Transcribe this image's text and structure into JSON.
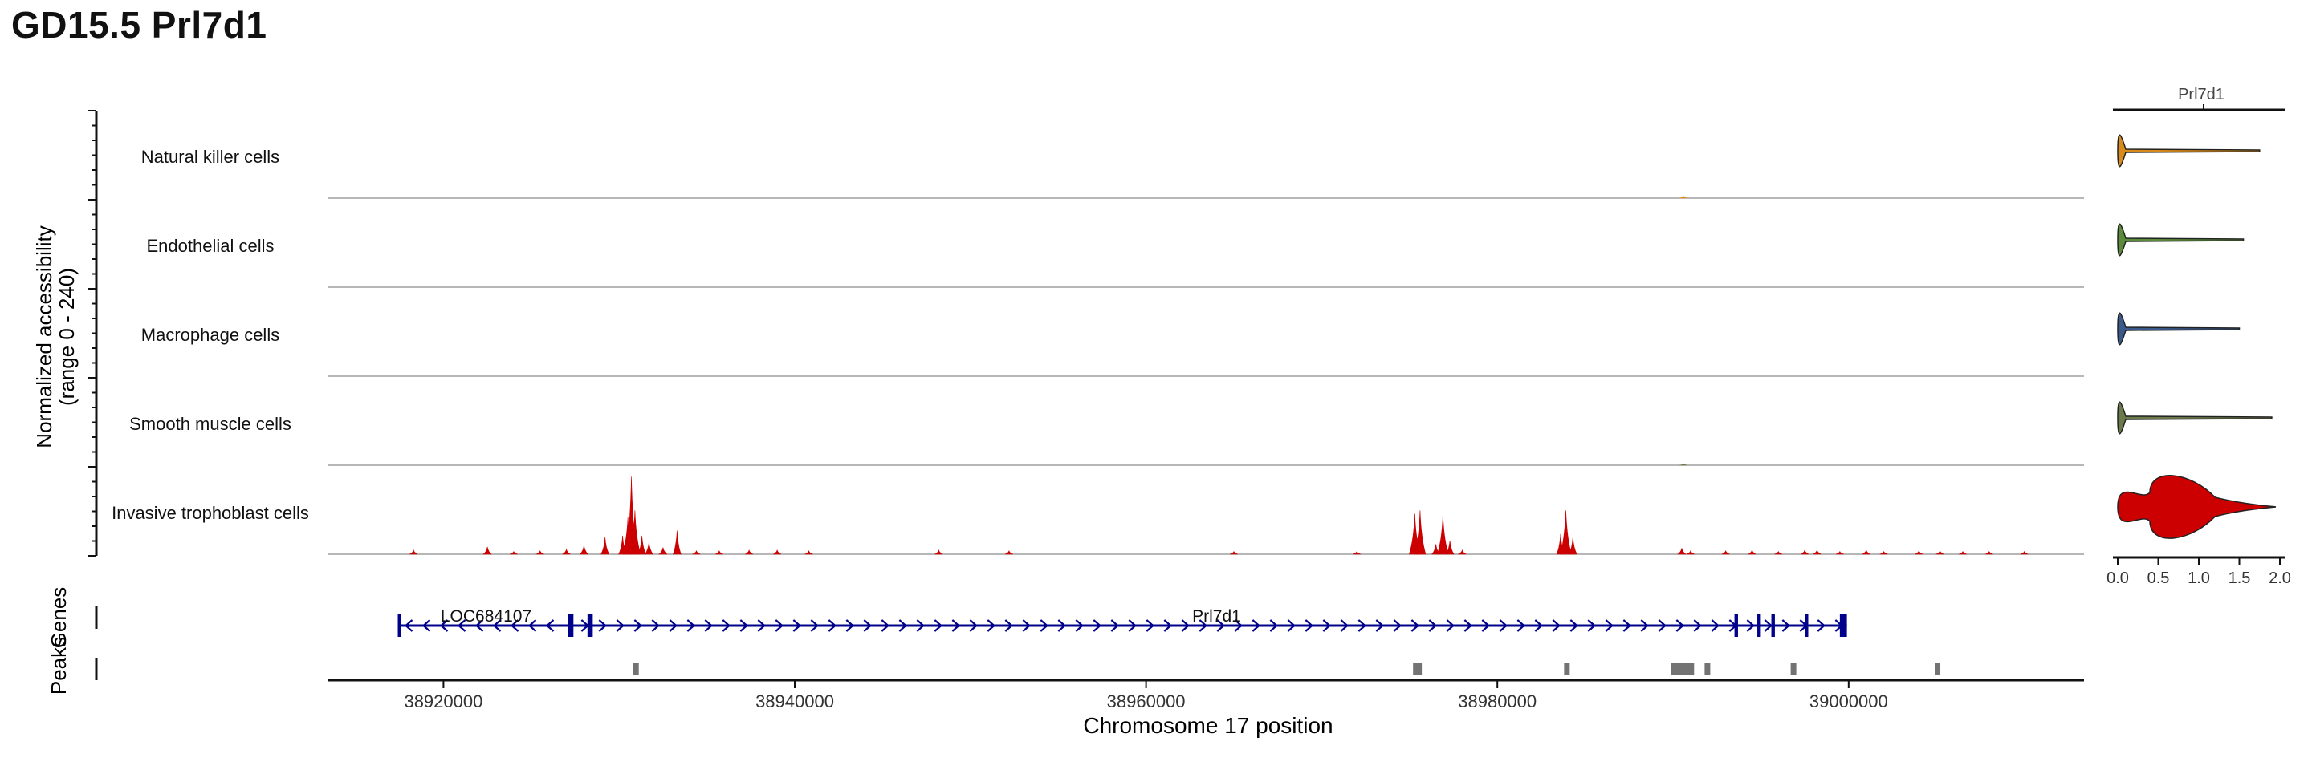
{
  "title": "GD15.5 Prl7d1",
  "colors": {
    "track_line": "#8c8c8c",
    "nk": "#d88a1a",
    "endothelial": "#5a8c3a",
    "macrophage": "#3a5a8c",
    "smooth_muscle": "#6b7a4a",
    "trophoblast": "#cc0000",
    "gene": "#00008b",
    "peak": "#737373"
  },
  "chart_data": {
    "type": "area",
    "ylabel_line1": "Normalized accessibility",
    "ylabel_line2": "(range 0 - 240)",
    "xlabel": "Chromosome 17 position",
    "xlim": [
      38913400,
      39013400
    ],
    "xticks": [
      38920000,
      38940000,
      38960000,
      38980000,
      39000000
    ],
    "xtick_labels": [
      "38920000",
      "38940000",
      "38960000",
      "38980000",
      "39000000"
    ],
    "ylim": [
      0,
      240
    ],
    "tracks": [
      {
        "name": "Natural killer cells",
        "color_key": "nk",
        "peaks": [
          [
            38990600,
            6
          ]
        ]
      },
      {
        "name": "Endothelial cells",
        "color_key": "endothelial",
        "peaks": []
      },
      {
        "name": "Macrophage cells",
        "color_key": "macrophage",
        "peaks": []
      },
      {
        "name": "Smooth muscle cells",
        "color_key": "smooth_muscle",
        "peaks": [
          [
            38990600,
            4
          ]
        ]
      },
      {
        "name": "Invasive trophoblast cells",
        "color_key": "trophoblast",
        "peaks": [
          [
            38918300,
            12
          ],
          [
            38922500,
            22
          ],
          [
            38924000,
            8
          ],
          [
            38925500,
            10
          ],
          [
            38927000,
            14
          ],
          [
            38928000,
            26
          ],
          [
            38929200,
            50
          ],
          [
            38930200,
            55
          ],
          [
            38930500,
            110
          ],
          [
            38930700,
            230
          ],
          [
            38930900,
            130
          ],
          [
            38931300,
            55
          ],
          [
            38931700,
            35
          ],
          [
            38932500,
            20
          ],
          [
            38933300,
            70
          ],
          [
            38934400,
            10
          ],
          [
            38935700,
            10
          ],
          [
            38937400,
            12
          ],
          [
            38939000,
            12
          ],
          [
            38940800,
            10
          ],
          [
            38948200,
            12
          ],
          [
            38952200,
            10
          ],
          [
            38965000,
            8
          ],
          [
            38972000,
            8
          ],
          [
            38975300,
            120
          ],
          [
            38975600,
            130
          ],
          [
            38976500,
            30
          ],
          [
            38976900,
            115
          ],
          [
            38977300,
            40
          ],
          [
            38978000,
            12
          ],
          [
            38983600,
            60
          ],
          [
            38983900,
            130
          ],
          [
            38984300,
            50
          ],
          [
            38990500,
            18
          ],
          [
            38991000,
            10
          ],
          [
            38993000,
            10
          ],
          [
            38994500,
            12
          ],
          [
            38996000,
            8
          ],
          [
            38997500,
            12
          ],
          [
            38998200,
            12
          ],
          [
            38999500,
            8
          ],
          [
            39001000,
            12
          ],
          [
            39002000,
            8
          ],
          [
            39004000,
            10
          ],
          [
            39005200,
            10
          ],
          [
            39006500,
            8
          ],
          [
            39008000,
            8
          ],
          [
            39010000,
            8
          ]
        ]
      }
    ],
    "genes": [
      {
        "name": "LOC684107",
        "start": 38917400,
        "end": 38927400,
        "strand": "-",
        "exons": [
          [
            38917400,
            38917500
          ],
          [
            38927100,
            38927400
          ]
        ]
      },
      {
        "name": "Prl7d1",
        "start": 38927400,
        "end": 38999900,
        "strand": "+",
        "exons": [
          [
            38928200,
            38928500
          ],
          [
            38993500,
            38993700
          ],
          [
            38994800,
            38995000
          ],
          [
            38995600,
            38995800
          ],
          [
            38997500,
            38997700
          ],
          [
            38999500,
            38999900
          ]
        ]
      }
    ],
    "peaks_track": [
      [
        38930800,
        38931100
      ],
      [
        38975200,
        38975700
      ],
      [
        38983800,
        38984000
      ],
      [
        38989900,
        38991200
      ],
      [
        38991800,
        38992100
      ],
      [
        38996700,
        38997000
      ],
      [
        39004900,
        39005200
      ]
    ],
    "peaks_label": "Peaks",
    "genes_label": "Genes",
    "violin": {
      "title": "Prl7d1",
      "xlim": [
        0,
        2.0
      ],
      "xticks": [
        0.0,
        0.5,
        1.0,
        1.5,
        2.0
      ],
      "xtick_labels": [
        "0.0",
        "0.5",
        "1.0",
        "1.5",
        "2.0"
      ],
      "max": [
        1.75,
        1.55,
        1.5,
        1.9,
        1.95
      ]
    }
  }
}
